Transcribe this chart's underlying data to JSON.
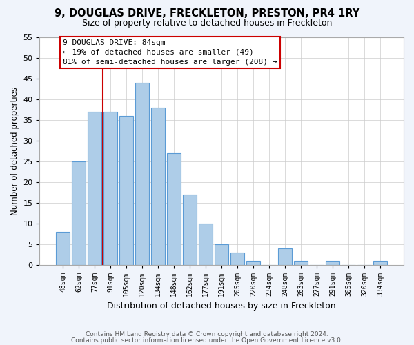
{
  "title": "9, DOUGLAS DRIVE, FRECKLETON, PRESTON, PR4 1RY",
  "subtitle": "Size of property relative to detached houses in Freckleton",
  "xlabel": "Distribution of detached houses by size in Freckleton",
  "ylabel": "Number of detached properties",
  "bar_labels": [
    "48sqm",
    "62sqm",
    "77sqm",
    "91sqm",
    "105sqm",
    "120sqm",
    "134sqm",
    "148sqm",
    "162sqm",
    "177sqm",
    "191sqm",
    "205sqm",
    "220sqm",
    "234sqm",
    "248sqm",
    "263sqm",
    "277sqm",
    "291sqm",
    "305sqm",
    "320sqm",
    "334sqm"
  ],
  "bar_values": [
    8,
    25,
    37,
    37,
    36,
    44,
    38,
    27,
    17,
    10,
    5,
    3,
    1,
    0,
    4,
    1,
    0,
    1,
    0,
    0,
    1
  ],
  "bar_color": "#aecde8",
  "bar_edge_color": "#5b9bd5",
  "vline_x": 2.5,
  "annotation_title": "9 DOUGLAS DRIVE: 84sqm",
  "annotation_line1": "← 19% of detached houses are smaller (49)",
  "annotation_line2": "81% of semi-detached houses are larger (208) →",
  "annotation_box_color": "#ffffff",
  "annotation_box_edge": "#cc0000",
  "vline_color": "#cc0000",
  "ylim": [
    0,
    55
  ],
  "yticks": [
    0,
    5,
    10,
    15,
    20,
    25,
    30,
    35,
    40,
    45,
    50,
    55
  ],
  "footer1": "Contains HM Land Registry data © Crown copyright and database right 2024.",
  "footer2": "Contains public sector information licensed under the Open Government Licence v3.0.",
  "bg_color": "#f0f4fb",
  "plot_bg_color": "#ffffff"
}
